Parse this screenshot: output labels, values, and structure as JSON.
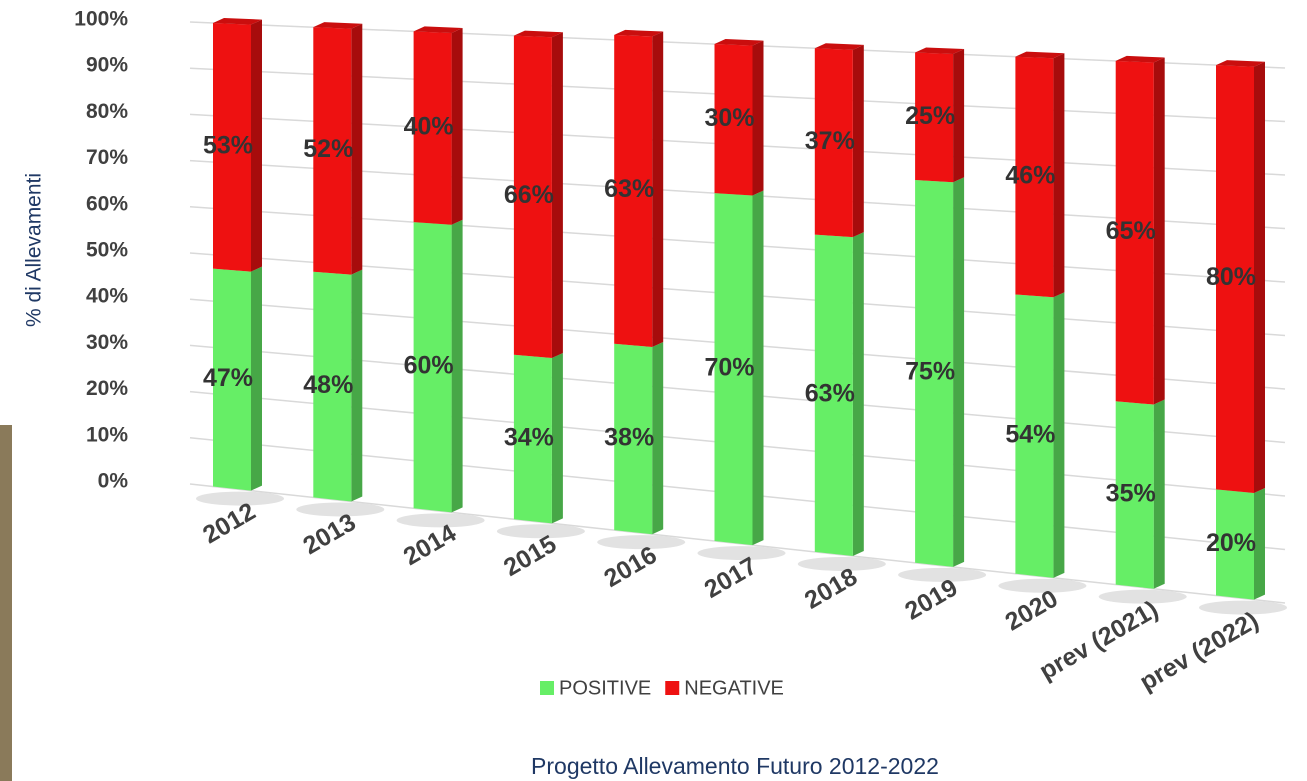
{
  "chart_data": {
    "type": "stacked_bar_3d",
    "title": "Progetto Allevamento Futuro 2012-2022",
    "y_label": "% di Allevamenti",
    "categories": [
      "2012",
      "2013",
      "2014",
      "2015",
      "2016",
      "2017",
      "2018",
      "2019",
      "2020",
      "prev (2021)",
      "prev (2022)"
    ],
    "series": [
      {
        "name": "POSITIVE",
        "color": "#66ee66",
        "values": [
          47,
          48,
          60,
          34,
          38,
          70,
          63,
          75,
          54,
          35,
          20
        ],
        "value_labels": [
          "47%",
          "48%",
          "60%",
          "34%",
          "38%",
          "70%",
          "63%",
          "75%",
          "54%",
          "35%",
          "20%"
        ]
      },
      {
        "name": "NEGATIVE",
        "color": "#ee1111",
        "values": [
          53,
          52,
          40,
          66,
          63,
          30,
          37,
          25,
          46,
          65,
          80
        ],
        "value_labels": [
          "53%",
          "52%",
          "40%",
          "66%",
          "63%",
          "30%",
          "37%",
          "25%",
          "46%",
          "65%",
          "80%"
        ]
      }
    ],
    "ylim": [
      0,
      100
    ],
    "yticks": [
      {
        "value": 0,
        "label": "0%"
      },
      {
        "value": 10,
        "label": "10%"
      },
      {
        "value": 20,
        "label": "20%"
      },
      {
        "value": 30,
        "label": "30%"
      },
      {
        "value": 40,
        "label": "40%"
      },
      {
        "value": 50,
        "label": "50%"
      },
      {
        "value": 60,
        "label": "60%"
      },
      {
        "value": 70,
        "label": "70%"
      },
      {
        "value": 80,
        "label": "80%"
      },
      {
        "value": 90,
        "label": "90%"
      },
      {
        "value": 100,
        "label": "100%"
      }
    ],
    "grid": true,
    "legend": "bottom"
  }
}
